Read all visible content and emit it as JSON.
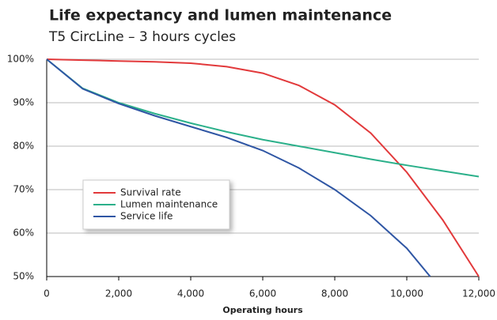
{
  "chart_data": {
    "type": "line",
    "title": "Life expectancy and lumen maintenance",
    "subtitle": "T5 CircLine – 3 hours cycles",
    "x_label": "Operating hours",
    "series": [
      {
        "name": "Survival rate",
        "color": "#e2393b",
        "x": [
          0,
          1000,
          2000,
          3000,
          4000,
          5000,
          6000,
          7000,
          8000,
          9000,
          10000,
          11000,
          12000
        ],
        "values": [
          100,
          99.8,
          99.6,
          99.4,
          99.1,
          98.3,
          96.8,
          94,
          89.5,
          83,
          74,
          63,
          50
        ]
      },
      {
        "name": "Lumen maintenance",
        "color": "#2bb08a",
        "x": [
          0,
          1000,
          2000,
          3000,
          4000,
          5000,
          6000,
          7000,
          8000,
          9000,
          10000,
          11000,
          12000
        ],
        "values": [
          100,
          93.3,
          90,
          87.5,
          85.3,
          83.3,
          81.5,
          80,
          78.5,
          77,
          75.6,
          74.3,
          73
        ]
      },
      {
        "name": "Service life",
        "color": "#2f56a4",
        "x": [
          0,
          1000,
          2000,
          3000,
          4000,
          5000,
          6000,
          7000,
          8000,
          9000,
          10000,
          10650
        ],
        "values": [
          100,
          93.2,
          89.8,
          87,
          84.5,
          82,
          79,
          75,
          70,
          64,
          56.5,
          50
        ]
      }
    ],
    "xlim": [
      0,
      12000
    ],
    "xticks": [
      0,
      {
        "value": 2000,
        "label": "2,000"
      },
      {
        "value": 4000,
        "label": "4,000"
      },
      {
        "value": 6000,
        "label": "6,000"
      },
      {
        "value": 8000,
        "label": "8,000"
      },
      {
        "value": 10000,
        "label": "10,000"
      },
      {
        "value": 12000,
        "label": "12,000"
      }
    ],
    "ylim": [
      50,
      100
    ],
    "yticks": [
      {
        "value": 50,
        "label": "50%"
      },
      {
        "value": 60,
        "label": "60%"
      },
      {
        "value": 70,
        "label": "70%"
      },
      {
        "value": 80,
        "label": "80%"
      },
      {
        "value": 90,
        "label": "90%"
      },
      {
        "value": 100,
        "label": "100%"
      }
    ],
    "grid": true
  }
}
